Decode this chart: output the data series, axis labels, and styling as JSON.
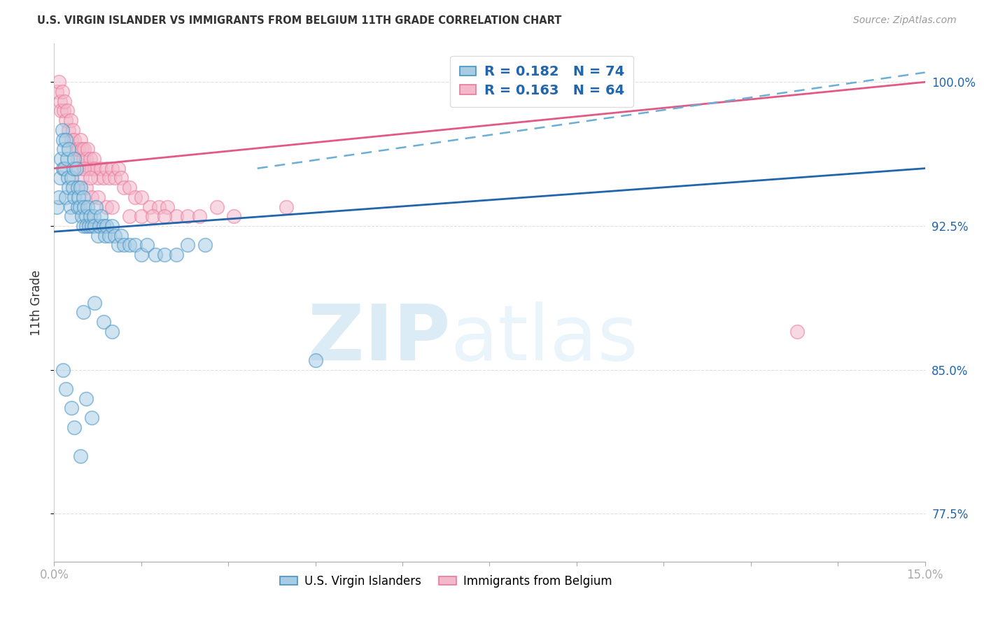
{
  "title": "U.S. VIRGIN ISLANDER VS IMMIGRANTS FROM BELGIUM 11TH GRADE CORRELATION CHART",
  "source": "Source: ZipAtlas.com",
  "ylabel": "11th Grade",
  "right_yticks": [
    77.5,
    85.0,
    92.5,
    100.0
  ],
  "right_ytick_labels": [
    "77.5%",
    "85.0%",
    "92.5%",
    "100.0%"
  ],
  "legend_blue_label": "U.S. Virgin Islanders",
  "legend_pink_label": "Immigrants from Belgium",
  "blue_color": "#a8cce4",
  "pink_color": "#f4b8cb",
  "blue_edge_color": "#4393c3",
  "pink_edge_color": "#e8799a",
  "blue_line_color": "#2166ac",
  "pink_line_color": "#e05a85",
  "dashed_line_color": "#6baed6",
  "label_color": "#2166ac",
  "xmin": 0.0,
  "xmax": 15.0,
  "ymin": 75.0,
  "ymax": 102.0,
  "blue_scatter_x": [
    0.05,
    0.08,
    0.1,
    0.12,
    0.14,
    0.15,
    0.15,
    0.17,
    0.18,
    0.2,
    0.2,
    0.22,
    0.24,
    0.25,
    0.25,
    0.28,
    0.3,
    0.3,
    0.32,
    0.33,
    0.35,
    0.35,
    0.38,
    0.4,
    0.4,
    0.42,
    0.44,
    0.45,
    0.48,
    0.5,
    0.5,
    0.52,
    0.55,
    0.55,
    0.58,
    0.6,
    0.62,
    0.65,
    0.68,
    0.7,
    0.72,
    0.75,
    0.78,
    0.8,
    0.85,
    0.88,
    0.9,
    0.95,
    1.0,
    1.05,
    1.1,
    1.15,
    1.2,
    1.3,
    1.4,
    1.5,
    1.6,
    1.75,
    1.9,
    2.1,
    2.3,
    2.6,
    0.5,
    0.7,
    0.85,
    1.0,
    4.5,
    0.15,
    0.2,
    0.3,
    0.35,
    0.45,
    0.55,
    0.65
  ],
  "blue_scatter_y": [
    93.5,
    94.0,
    95.0,
    96.0,
    97.5,
    95.5,
    97.0,
    96.5,
    95.5,
    94.0,
    97.0,
    96.0,
    95.0,
    96.5,
    94.5,
    93.5,
    95.0,
    93.0,
    94.5,
    95.5,
    94.0,
    96.0,
    95.5,
    94.5,
    93.5,
    94.0,
    93.5,
    94.5,
    93.0,
    94.0,
    92.5,
    93.5,
    93.0,
    92.5,
    93.5,
    92.5,
    93.0,
    92.5,
    93.0,
    92.5,
    93.5,
    92.0,
    92.5,
    93.0,
    92.5,
    92.0,
    92.5,
    92.0,
    92.5,
    92.0,
    91.5,
    92.0,
    91.5,
    91.5,
    91.5,
    91.0,
    91.5,
    91.0,
    91.0,
    91.0,
    91.5,
    91.5,
    88.0,
    88.5,
    87.5,
    87.0,
    85.5,
    85.0,
    84.0,
    83.0,
    82.0,
    80.5,
    83.5,
    82.5
  ],
  "pink_scatter_x": [
    0.05,
    0.08,
    0.1,
    0.12,
    0.14,
    0.16,
    0.18,
    0.2,
    0.22,
    0.25,
    0.28,
    0.3,
    0.32,
    0.35,
    0.38,
    0.4,
    0.42,
    0.45,
    0.48,
    0.5,
    0.52,
    0.55,
    0.58,
    0.6,
    0.62,
    0.65,
    0.68,
    0.7,
    0.75,
    0.8,
    0.85,
    0.9,
    0.95,
    1.0,
    1.05,
    1.1,
    1.15,
    1.2,
    1.3,
    1.4,
    1.5,
    1.65,
    1.8,
    1.95,
    2.1,
    2.3,
    2.5,
    2.8,
    3.1,
    0.55,
    0.65,
    0.75,
    0.9,
    1.0,
    4.0,
    1.3,
    1.5,
    1.7,
    1.9,
    0.42,
    0.48,
    0.52,
    12.8,
    0.62
  ],
  "pink_scatter_y": [
    99.5,
    100.0,
    99.0,
    98.5,
    99.5,
    98.5,
    99.0,
    98.0,
    98.5,
    97.5,
    98.0,
    97.0,
    97.5,
    97.0,
    96.5,
    96.0,
    96.5,
    97.0,
    96.5,
    96.0,
    96.5,
    96.0,
    96.5,
    95.5,
    96.0,
    95.5,
    96.0,
    95.5,
    95.0,
    95.5,
    95.0,
    95.5,
    95.0,
    95.5,
    95.0,
    95.5,
    95.0,
    94.5,
    94.5,
    94.0,
    94.0,
    93.5,
    93.5,
    93.5,
    93.0,
    93.0,
    93.0,
    93.5,
    93.0,
    94.5,
    94.0,
    94.0,
    93.5,
    93.5,
    93.5,
    93.0,
    93.0,
    93.0,
    93.0,
    95.5,
    95.0,
    95.5,
    87.0,
    95.0
  ],
  "blue_trend_x": [
    0.0,
    15.0
  ],
  "blue_trend_y": [
    92.2,
    95.5
  ],
  "pink_trend_x": [
    0.0,
    15.0
  ],
  "pink_trend_y": [
    95.5,
    100.0
  ],
  "dashed_trend_x": [
    3.5,
    15.0
  ],
  "dashed_trend_y": [
    95.5,
    100.5
  ],
  "watermark_zip": "ZIP",
  "watermark_atlas": "atlas",
  "background_color": "#ffffff",
  "grid_color": "#e0e0e0"
}
